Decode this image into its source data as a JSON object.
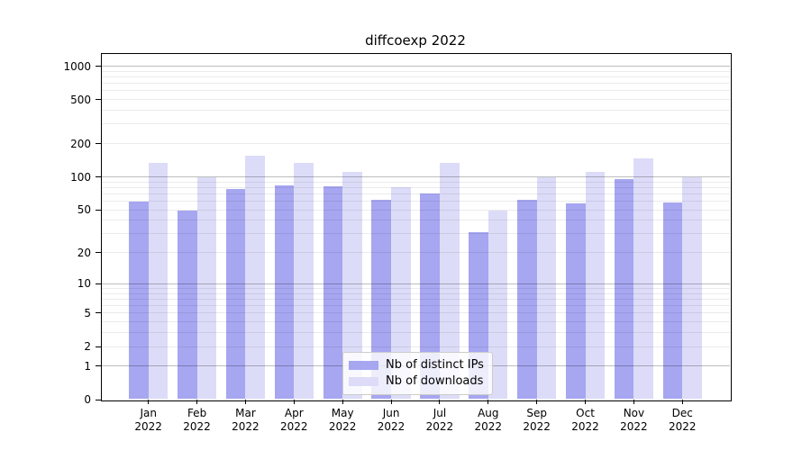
{
  "chart_data": {
    "type": "bar",
    "title": "diffcoexp 2022",
    "categories": [
      "Jan",
      "Feb",
      "Mar",
      "Apr",
      "May",
      "Jun",
      "Jul",
      "Aug",
      "Sep",
      "Oct",
      "Nov",
      "Dec"
    ],
    "x_year_line": "2022",
    "series": [
      {
        "name": "Nb of distinct IPs",
        "color": "#a6a6f1",
        "values": [
          60,
          49,
          78,
          84,
          82,
          62,
          70,
          31,
          62,
          57,
          95,
          58
        ]
      },
      {
        "name": "Nb of downloads",
        "color": "#dcdcf8",
        "values": [
          135,
          100,
          155,
          133,
          110,
          80,
          133,
          49,
          100,
          110,
          148,
          100
        ]
      }
    ],
    "y_scale": "log1p",
    "ylim": [
      0,
      1312
    ],
    "y_ticks": [
      0,
      1,
      2,
      5,
      10,
      20,
      50,
      100,
      200,
      500,
      1000
    ],
    "y_major_gridlines": [
      1,
      10,
      100,
      1000
    ],
    "y_minor_gridlines": [
      2,
      3,
      4,
      5,
      6,
      7,
      8,
      9,
      20,
      30,
      40,
      50,
      60,
      70,
      80,
      90,
      200,
      300,
      400,
      500,
      600,
      700,
      800,
      900
    ],
    "grid": true,
    "legend_position": "lower center",
    "colors": {
      "major_grid": "rgba(0,0,0,0.26)",
      "minor_grid": "rgba(0,0,0,0.08)",
      "spine": "#000000",
      "text": "#000000",
      "background": "#ffffff"
    }
  }
}
